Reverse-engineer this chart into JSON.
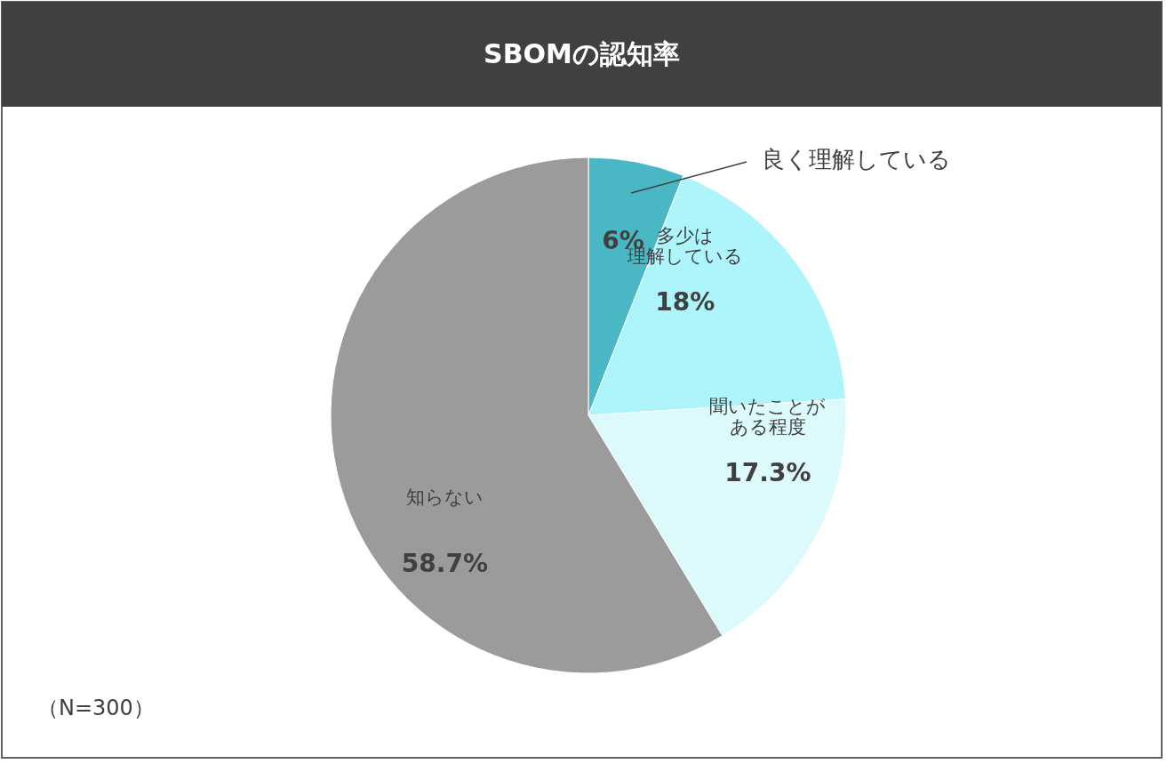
{
  "chart_data": {
    "type": "pie",
    "title": "SBOMの認知率",
    "categories": [
      "良く理解している",
      "多少は理解している",
      "聞いたことがある程度",
      "知らない"
    ],
    "values": [
      6,
      18,
      17.3,
      58.7
    ],
    "value_labels": [
      "6%",
      "18%",
      "17.3%",
      "58.7%"
    ],
    "colors": [
      "#4ab8c4",
      "#aef4fb",
      "#dcf9fc",
      "#9b9b9b"
    ],
    "annotations": [
      "（N=300）"
    ]
  }
}
